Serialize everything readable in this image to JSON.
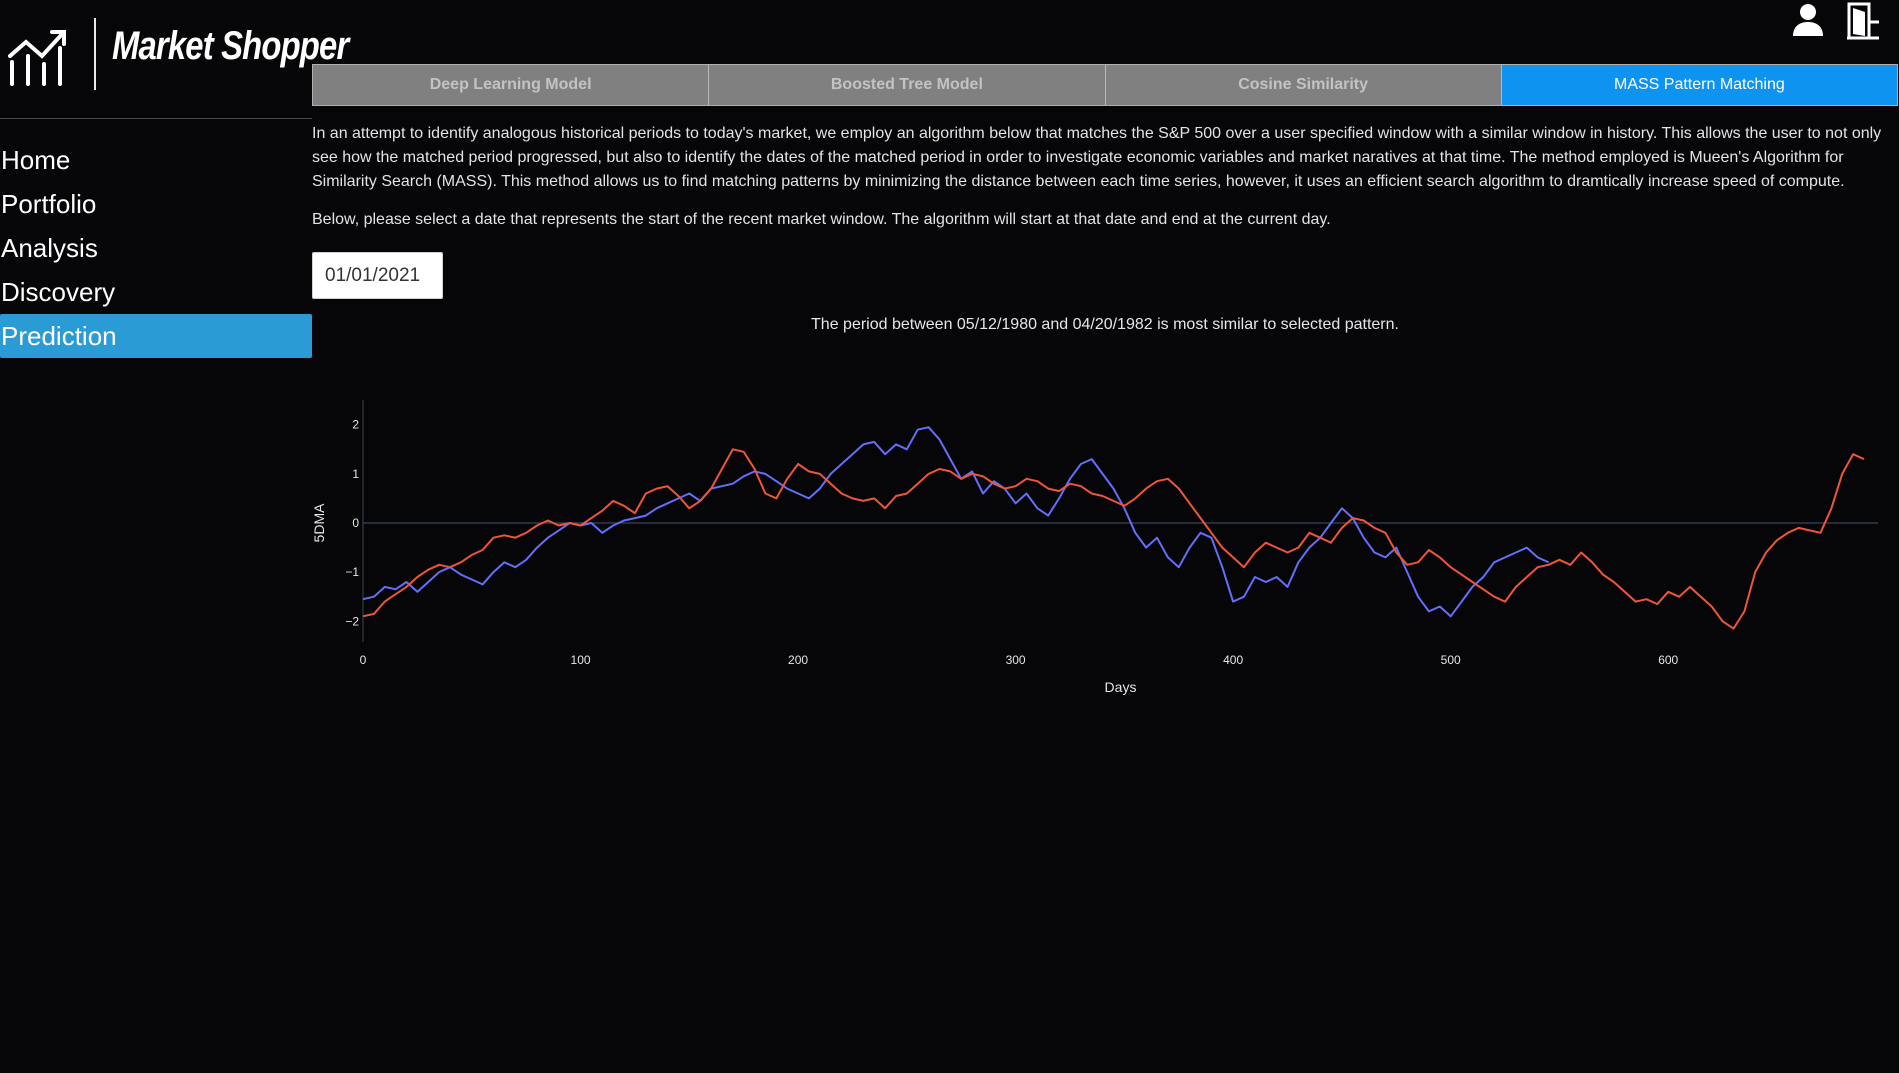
{
  "brand": {
    "name": "Market Shopper"
  },
  "header": {
    "icons": [
      "user-icon",
      "exit-door-icon"
    ]
  },
  "nav": {
    "items": [
      {
        "label": "Home",
        "active": false
      },
      {
        "label": "Portfolio",
        "active": false
      },
      {
        "label": "Analysis",
        "active": false
      },
      {
        "label": "Discovery",
        "active": false
      },
      {
        "label": "Prediction",
        "active": true
      }
    ]
  },
  "tabs": [
    {
      "label": "Deep Learning Model",
      "active": false
    },
    {
      "label": "Boosted Tree Model",
      "active": false
    },
    {
      "label": "Cosine Similarity",
      "active": false
    },
    {
      "label": "MASS Pattern Matching",
      "active": true
    }
  ],
  "content": {
    "description": "In an attempt to identify analogous historical periods to today's market, we employ an algorithm below that matches the S&P 500 over a user specified window with a similar window in history. This allows the user to not only see how the matched period progressed, but also to identify the dates of the matched period in order to investigate economic variables and market naratives at that time. The method employed is Mueen's Algorithm for Similarity Search (MASS). This method allows us to find matching patterns by minimizing the distance between each time series, however, it uses an efficient search algorithm to dramtically increase speed of compute.",
    "instruction": "Below, please select a date that represents the start of the recent market window. The algorithm will start at that date and end at the current day.",
    "date_value": "01/01/2021",
    "result_text": "The period between 05/12/1980 and 04/20/1982 is most similar to selected pattern."
  },
  "colors": {
    "accent_nav": "#2b9bd6",
    "accent_tab": "#0e93f0",
    "series_blue": "#636efa",
    "series_red": "#ef553b"
  },
  "chart_data": {
    "type": "line",
    "xlabel": "Days",
    "ylabel": "5DMA",
    "xlim": [
      0,
      690
    ],
    "ylim": [
      -2.3,
      2.3
    ],
    "x_ticks": [
      0,
      100,
      200,
      300,
      400,
      500,
      600
    ],
    "y_ticks": [
      -2,
      -1,
      0,
      1,
      2
    ],
    "grid": false,
    "zero_line": true,
    "series": [
      {
        "color": "#636efa",
        "points": [
          [
            0,
            -1.55
          ],
          [
            5,
            -1.5
          ],
          [
            10,
            -1.3
          ],
          [
            15,
            -1.35
          ],
          [
            20,
            -1.2
          ],
          [
            25,
            -1.4
          ],
          [
            30,
            -1.2
          ],
          [
            35,
            -1.0
          ],
          [
            40,
            -0.9
          ],
          [
            45,
            -1.05
          ],
          [
            50,
            -1.15
          ],
          [
            55,
            -1.25
          ],
          [
            60,
            -1.0
          ],
          [
            65,
            -0.8
          ],
          [
            70,
            -0.9
          ],
          [
            75,
            -0.75
          ],
          [
            80,
            -0.5
          ],
          [
            85,
            -0.3
          ],
          [
            90,
            -0.15
          ],
          [
            95,
            0.0
          ],
          [
            100,
            -0.05
          ],
          [
            105,
            0.0
          ],
          [
            110,
            -0.2
          ],
          [
            115,
            -0.05
          ],
          [
            120,
            0.05
          ],
          [
            125,
            0.1
          ],
          [
            130,
            0.15
          ],
          [
            135,
            0.3
          ],
          [
            140,
            0.4
          ],
          [
            145,
            0.5
          ],
          [
            150,
            0.6
          ],
          [
            155,
            0.45
          ],
          [
            160,
            0.7
          ],
          [
            165,
            0.75
          ],
          [
            170,
            0.8
          ],
          [
            175,
            0.95
          ],
          [
            180,
            1.05
          ],
          [
            185,
            1.0
          ],
          [
            190,
            0.85
          ],
          [
            195,
            0.7
          ],
          [
            200,
            0.6
          ],
          [
            205,
            0.5
          ],
          [
            210,
            0.7
          ],
          [
            215,
            1.0
          ],
          [
            220,
            1.2
          ],
          [
            225,
            1.4
          ],
          [
            230,
            1.6
          ],
          [
            235,
            1.65
          ],
          [
            240,
            1.4
          ],
          [
            245,
            1.6
          ],
          [
            250,
            1.5
          ],
          [
            255,
            1.9
          ],
          [
            260,
            1.95
          ],
          [
            265,
            1.7
          ],
          [
            270,
            1.3
          ],
          [
            275,
            0.9
          ],
          [
            280,
            1.05
          ],
          [
            285,
            0.6
          ],
          [
            290,
            0.85
          ],
          [
            295,
            0.7
          ],
          [
            300,
            0.4
          ],
          [
            305,
            0.6
          ],
          [
            310,
            0.3
          ],
          [
            315,
            0.15
          ],
          [
            320,
            0.5
          ],
          [
            325,
            0.9
          ],
          [
            330,
            1.2
          ],
          [
            335,
            1.3
          ],
          [
            340,
            1.0
          ],
          [
            345,
            0.7
          ],
          [
            350,
            0.3
          ],
          [
            355,
            -0.2
          ],
          [
            360,
            -0.5
          ],
          [
            365,
            -0.3
          ],
          [
            370,
            -0.7
          ],
          [
            375,
            -0.9
          ],
          [
            380,
            -0.5
          ],
          [
            385,
            -0.2
          ],
          [
            390,
            -0.3
          ],
          [
            395,
            -0.9
          ],
          [
            400,
            -1.6
          ],
          [
            405,
            -1.5
          ],
          [
            410,
            -1.1
          ],
          [
            415,
            -1.2
          ],
          [
            420,
            -1.1
          ],
          [
            425,
            -1.3
          ],
          [
            430,
            -0.8
          ],
          [
            435,
            -0.5
          ],
          [
            440,
            -0.3
          ],
          [
            445,
            0.0
          ],
          [
            450,
            0.3
          ],
          [
            455,
            0.1
          ],
          [
            460,
            -0.3
          ],
          [
            465,
            -0.6
          ],
          [
            470,
            -0.7
          ],
          [
            475,
            -0.5
          ],
          [
            480,
            -1.0
          ],
          [
            485,
            -1.5
          ],
          [
            490,
            -1.8
          ],
          [
            495,
            -1.7
          ],
          [
            500,
            -1.9
          ],
          [
            505,
            -1.6
          ],
          [
            510,
            -1.3
          ],
          [
            515,
            -1.1
          ],
          [
            520,
            -0.8
          ],
          [
            525,
            -0.7
          ],
          [
            530,
            -0.6
          ],
          [
            535,
            -0.5
          ],
          [
            540,
            -0.7
          ],
          [
            545,
            -0.8
          ]
        ]
      },
      {
        "color": "#ef553b",
        "points": [
          [
            0,
            -1.9
          ],
          [
            5,
            -1.85
          ],
          [
            10,
            -1.6
          ],
          [
            15,
            -1.45
          ],
          [
            20,
            -1.3
          ],
          [
            25,
            -1.1
          ],
          [
            30,
            -0.95
          ],
          [
            35,
            -0.85
          ],
          [
            40,
            -0.9
          ],
          [
            45,
            -0.8
          ],
          [
            50,
            -0.65
          ],
          [
            55,
            -0.55
          ],
          [
            60,
            -0.3
          ],
          [
            65,
            -0.25
          ],
          [
            70,
            -0.3
          ],
          [
            75,
            -0.2
          ],
          [
            80,
            -0.05
          ],
          [
            85,
            0.05
          ],
          [
            90,
            -0.05
          ],
          [
            95,
            0.0
          ],
          [
            100,
            -0.05
          ],
          [
            105,
            0.1
          ],
          [
            110,
            0.25
          ],
          [
            115,
            0.45
          ],
          [
            120,
            0.35
          ],
          [
            125,
            0.2
          ],
          [
            130,
            0.6
          ],
          [
            135,
            0.7
          ],
          [
            140,
            0.75
          ],
          [
            145,
            0.55
          ],
          [
            150,
            0.3
          ],
          [
            155,
            0.45
          ],
          [
            160,
            0.7
          ],
          [
            165,
            1.1
          ],
          [
            170,
            1.5
          ],
          [
            175,
            1.45
          ],
          [
            180,
            1.1
          ],
          [
            185,
            0.6
          ],
          [
            190,
            0.5
          ],
          [
            195,
            0.9
          ],
          [
            200,
            1.2
          ],
          [
            205,
            1.05
          ],
          [
            210,
            1.0
          ],
          [
            215,
            0.8
          ],
          [
            220,
            0.6
          ],
          [
            225,
            0.5
          ],
          [
            230,
            0.45
          ],
          [
            235,
            0.5
          ],
          [
            240,
            0.3
          ],
          [
            245,
            0.55
          ],
          [
            250,
            0.6
          ],
          [
            255,
            0.8
          ],
          [
            260,
            1.0
          ],
          [
            265,
            1.1
          ],
          [
            270,
            1.05
          ],
          [
            275,
            0.9
          ],
          [
            280,
            1.0
          ],
          [
            285,
            0.95
          ],
          [
            290,
            0.8
          ],
          [
            295,
            0.7
          ],
          [
            300,
            0.75
          ],
          [
            305,
            0.9
          ],
          [
            310,
            0.85
          ],
          [
            315,
            0.7
          ],
          [
            320,
            0.65
          ],
          [
            325,
            0.8
          ],
          [
            330,
            0.75
          ],
          [
            335,
            0.6
          ],
          [
            340,
            0.55
          ],
          [
            345,
            0.45
          ],
          [
            350,
            0.35
          ],
          [
            355,
            0.5
          ],
          [
            360,
            0.7
          ],
          [
            365,
            0.85
          ],
          [
            370,
            0.9
          ],
          [
            375,
            0.7
          ],
          [
            380,
            0.4
          ],
          [
            385,
            0.1
          ],
          [
            390,
            -0.2
          ],
          [
            395,
            -0.5
          ],
          [
            400,
            -0.7
          ],
          [
            405,
            -0.9
          ],
          [
            410,
            -0.6
          ],
          [
            415,
            -0.4
          ],
          [
            420,
            -0.5
          ],
          [
            425,
            -0.6
          ],
          [
            430,
            -0.5
          ],
          [
            435,
            -0.2
          ],
          [
            440,
            -0.3
          ],
          [
            445,
            -0.4
          ],
          [
            450,
            -0.1
          ],
          [
            455,
            0.1
          ],
          [
            460,
            0.05
          ],
          [
            465,
            -0.1
          ],
          [
            470,
            -0.2
          ],
          [
            475,
            -0.6
          ],
          [
            480,
            -0.85
          ],
          [
            485,
            -0.8
          ],
          [
            490,
            -0.55
          ],
          [
            495,
            -0.7
          ],
          [
            500,
            -0.9
          ],
          [
            505,
            -1.05
          ],
          [
            510,
            -1.2
          ],
          [
            515,
            -1.35
          ],
          [
            520,
            -1.5
          ],
          [
            525,
            -1.6
          ],
          [
            530,
            -1.3
          ],
          [
            535,
            -1.1
          ],
          [
            540,
            -0.9
          ],
          [
            545,
            -0.85
          ],
          [
            550,
            -0.75
          ],
          [
            555,
            -0.85
          ],
          [
            560,
            -0.6
          ],
          [
            565,
            -0.8
          ],
          [
            570,
            -1.05
          ],
          [
            575,
            -1.2
          ],
          [
            580,
            -1.4
          ],
          [
            585,
            -1.6
          ],
          [
            590,
            -1.55
          ],
          [
            595,
            -1.65
          ],
          [
            600,
            -1.4
          ],
          [
            605,
            -1.5
          ],
          [
            610,
            -1.3
          ],
          [
            615,
            -1.5
          ],
          [
            620,
            -1.7
          ],
          [
            625,
            -2.0
          ],
          [
            630,
            -2.15
          ],
          [
            635,
            -1.8
          ],
          [
            640,
            -1.0
          ],
          [
            645,
            -0.6
          ],
          [
            650,
            -0.35
          ],
          [
            655,
            -0.2
          ],
          [
            660,
            -0.1
          ],
          [
            665,
            -0.15
          ],
          [
            670,
            -0.2
          ],
          [
            675,
            0.3
          ],
          [
            680,
            1.0
          ],
          [
            685,
            1.4
          ],
          [
            690,
            1.3
          ]
        ]
      }
    ]
  }
}
